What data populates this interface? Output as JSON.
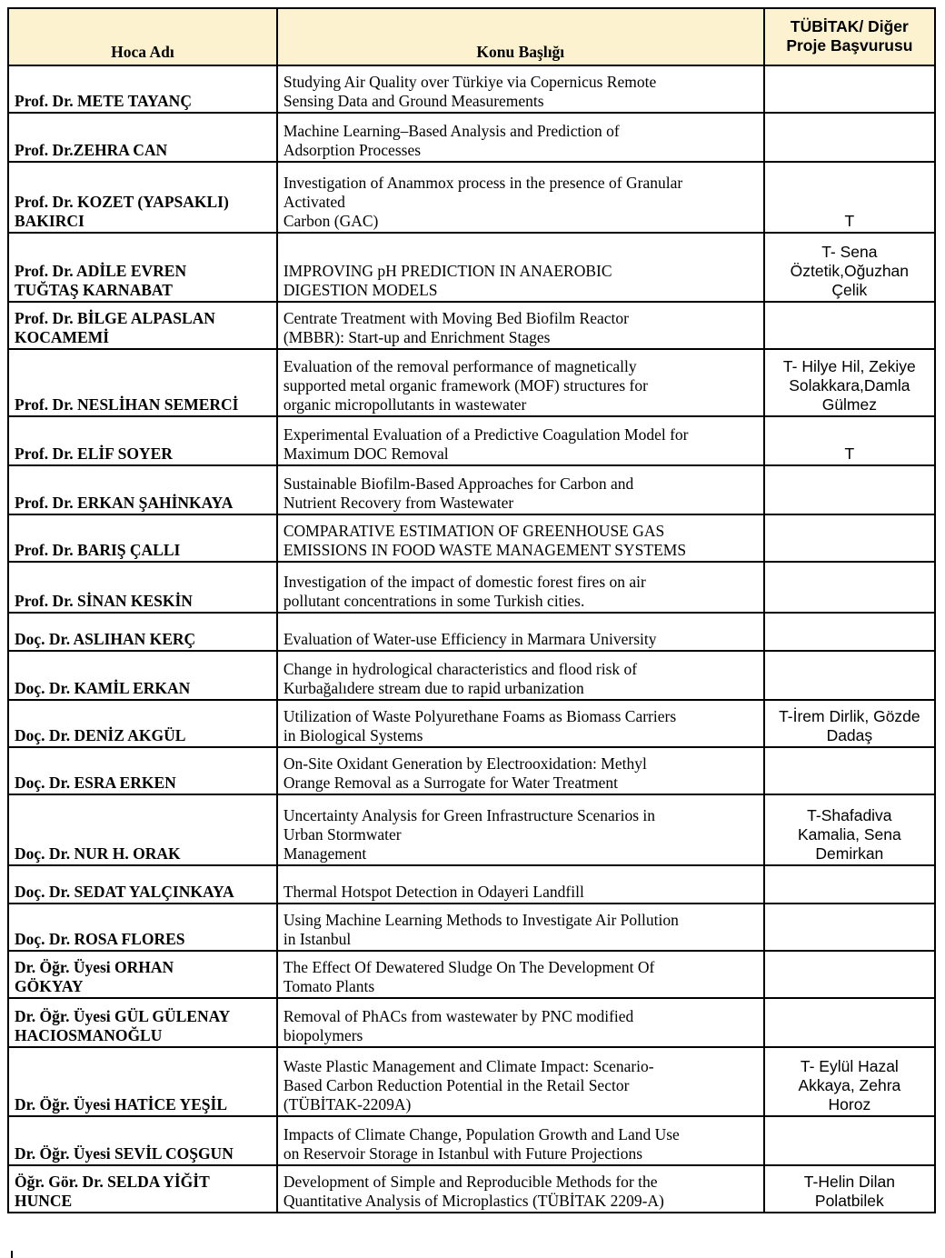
{
  "header": {
    "col1": "Hoca Adı",
    "col2": "Konu Başlığı",
    "col3": "TÜBİTAK/ Diğer\nProje Başvurusu",
    "header_bg": "#fdf2cf"
  },
  "rows": [
    {
      "name": "Prof. Dr. METE TAYANÇ",
      "topic": "Studying Air Quality over Türkiye via Copernicus Remote\nSensing Data and Ground Measurements",
      "project": ""
    },
    {
      "name": "Prof. Dr.ZEHRA CAN",
      "topic": "Machine Learning–Based Analysis and Prediction of\nAdsorption Processes",
      "project": ""
    },
    {
      "name": "Prof. Dr. KOZET (YAPSAKLI)\nBAKIRCI",
      "topic": "Investigation of Anammox process in the presence of Granular\nActivated\nCarbon (GAC)",
      "project": "T"
    },
    {
      "name": "Prof. Dr. ADİLE EVREN\nTUĞTAŞ KARNABAT",
      "topic": "IMPROVING pH PREDICTION IN ANAEROBIC\nDIGESTION MODELS",
      "project": "T- Sena\nÖztetik,Oğuzhan\nÇelik"
    },
    {
      "name": "Prof. Dr. BİLGE ALPASLAN\nKOCAMEMİ",
      "topic": "Centrate Treatment with Moving Bed Biofilm Reactor\n(MBBR): Start-up and Enrichment Stages",
      "project": ""
    },
    {
      "name": "Prof. Dr. NESLİHAN SEMERCİ",
      "topic": "Evaluation of the removal performance of magnetically\nsupported metal organic framework (MOF) structures for\norganic micropollutants in wastewater",
      "project": "T- Hilye Hil, Zekiye\nSolakkara,Damla\nGülmez"
    },
    {
      "name": "Prof. Dr. ELİF SOYER",
      "topic": "Experimental Evaluation of a Predictive Coagulation Model for\nMaximum DOC Removal",
      "project": "T"
    },
    {
      "name": "Prof. Dr. ERKAN ŞAHİNKAYA",
      "topic": "Sustainable Biofilm-Based Approaches for Carbon and\nNutrient Recovery from Wastewater",
      "project": ""
    },
    {
      "name": "Prof. Dr. BARIŞ ÇALLI",
      "topic": "COMPARATIVE ESTIMATION OF GREENHOUSE GAS\nEMISSIONS IN FOOD WASTE MANAGEMENT SYSTEMS",
      "project": ""
    },
    {
      "name": "Prof. Dr. SİNAN KESKİN",
      "topic": "Investigation of the impact of domestic forest fires on air\npollutant concentrations in some Turkish cities.",
      "project": ""
    },
    {
      "name": "Doç. Dr. ASLIHAN KERÇ",
      "topic": "Evaluation of Water-use Efficiency in Marmara University",
      "project": ""
    },
    {
      "name": "Doç. Dr. KAMİL ERKAN",
      "topic": "Change in hydrological characteristics and flood risk of\nKurbağalıdere stream due to rapid urbanization",
      "project": ""
    },
    {
      "name": "Doç. Dr. DENİZ AKGÜL",
      "topic": "Utilization of Waste Polyurethane Foams as Biomass Carriers\nin Biological Systems",
      "project": "T-İrem Dirlik, Gözde\nDadaş"
    },
    {
      "name": "Doç. Dr. ESRA ERKEN",
      "topic": "On-Site Oxidant Generation by Electrooxidation: Methyl\nOrange Removal as a Surrogate for Water Treatment",
      "project": ""
    },
    {
      "name": "Doç. Dr. NUR H. ORAK",
      "topic": "Uncertainty Analysis for Green Infrastructure Scenarios in\nUrban Stormwater\nManagement",
      "project": "T-Shafadiva\nKamalia, Sena\nDemirkan"
    },
    {
      "name": "Doç. Dr. SEDAT YALÇINKAYA",
      "topic": "Thermal Hotspot Detection in Odayeri Landfill",
      "project": ""
    },
    {
      "name": "Doç. Dr. ROSA FLORES",
      "topic": "Using Machine Learning Methods to Investigate Air Pollution\nin Istanbul",
      "project": ""
    },
    {
      "name": "Dr. Öğr. Üyesi ORHAN\nGÖKYAY",
      "topic": "The Effect Of Dewatered Sludge On The Development Of\nTomato Plants",
      "project": ""
    },
    {
      "name": "Dr. Öğr. Üyesi GÜL GÜLENAY\nHACIOSMANOĞLU",
      "topic": "Removal of PhACs from wastewater by PNC modified\nbiopolymers",
      "project": ""
    },
    {
      "name": "Dr. Öğr. Üyesi HATİCE YEŞİL",
      "topic": "Waste Plastic Management and Climate Impact: Scenario-\nBased Carbon Reduction Potential in the Retail Sector\n(TÜBİTAK-2209A)",
      "project": "T- Eylül Hazal\nAkkaya, Zehra\nHoroz"
    },
    {
      "name": "Dr. Öğr. Üyesi SEVİL COŞGUN",
      "topic": "Impacts of Climate Change, Population Growth and Land Use\non Reservoir Storage in Istanbul with Future Projections",
      "project": ""
    },
    {
      "name": "Öğr. Gör. Dr. SELDA YİĞİT\nHUNCE",
      "topic": "Development of Simple and Reproducible Methods for the\nQuantitative Analysis of Microplastics (TÜBİTAK 2209-A)",
      "project": "T-Helin Dilan\nPolatbilek"
    }
  ]
}
